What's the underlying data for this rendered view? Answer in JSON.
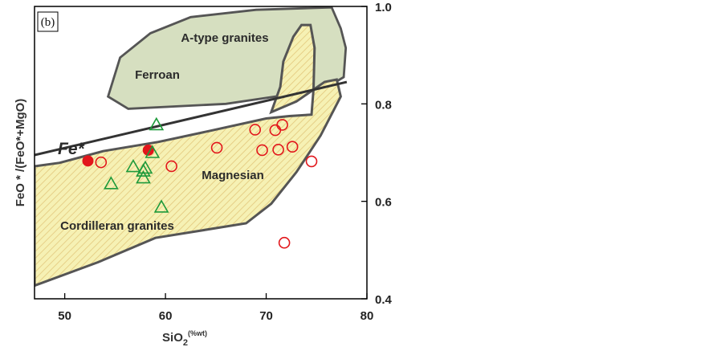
{
  "chart_data": {
    "type": "scatter",
    "panel_label": "(b)",
    "xlabel_main": "SiO",
    "xlabel_sub": "2",
    "xlabel_sup": "(%wt)",
    "ylabel": "FeO * /(FeO*+MgO)",
    "xlim": [
      47,
      80
    ],
    "ylim": [
      0.4,
      1.0
    ],
    "x_ticks": [
      "50",
      "60",
      "70",
      "80"
    ],
    "y_ticks": [
      "0.4",
      "0.6",
      "0.8",
      "1.0"
    ],
    "y_axis_side": "right",
    "grid": false,
    "colors": {
      "ferroan_fill": "#d6dfc0",
      "cordilleran_fill": "#f6f1b4",
      "hatch": "#e2c77c",
      "boundary": "#555555",
      "red": "#e2161b",
      "green": "#1e9a3b"
    },
    "regions": {
      "a_type": "A-type granites",
      "ferroan": "Ferroan",
      "magnesian": "Magnesian",
      "cordilleran": "Cordilleran granites",
      "fe_star": "Fe*"
    },
    "fe_line": [
      [
        47,
        0.695
      ],
      [
        78,
        0.845
      ]
    ],
    "a_type_polygon": [
      [
        54.3,
        0.815
      ],
      [
        55.5,
        0.895
      ],
      [
        58.5,
        0.945
      ],
      [
        62.5,
        0.978
      ],
      [
        69,
        0.993
      ],
      [
        76.5,
        0.998
      ],
      [
        77.4,
        0.955
      ],
      [
        77.9,
        0.915
      ],
      [
        77.7,
        0.855
      ],
      [
        76.5,
        0.84
      ],
      [
        72.5,
        0.82
      ],
      [
        66,
        0.8
      ],
      [
        56.3,
        0.79
      ]
    ],
    "cordilleran_polygon": [
      [
        47,
        0.672
      ],
      [
        49.5,
        0.679
      ],
      [
        53.8,
        0.703
      ],
      [
        59.3,
        0.722
      ],
      [
        64.5,
        0.745
      ],
      [
        70,
        0.77
      ],
      [
        72.3,
        0.775
      ],
      [
        74.5,
        0.778
      ],
      [
        74.7,
        0.83
      ],
      [
        74.8,
        0.915
      ],
      [
        74.4,
        0.962
      ],
      [
        73.5,
        0.962
      ],
      [
        72.7,
        0.938
      ],
      [
        71.7,
        0.887
      ],
      [
        71.4,
        0.835
      ],
      [
        70.5,
        0.783
      ],
      [
        73,
        0.805
      ],
      [
        75.8,
        0.845
      ],
      [
        77,
        0.85
      ],
      [
        77.4,
        0.815
      ],
      [
        75.4,
        0.735
      ],
      [
        73,
        0.66
      ],
      [
        70.5,
        0.595
      ],
      [
        68,
        0.555
      ],
      [
        63.5,
        0.54
      ],
      [
        59,
        0.525
      ],
      [
        53.3,
        0.475
      ],
      [
        47,
        0.427
      ]
    ],
    "series": [
      {
        "marker": "filled-circle",
        "color": "red",
        "points": [
          [
            52.3,
            0.683
          ],
          [
            58.3,
            0.705
          ]
        ]
      },
      {
        "marker": "open-circle",
        "color": "red",
        "points": [
          [
            53.6,
            0.68
          ],
          [
            60.6,
            0.672
          ],
          [
            65.1,
            0.71
          ],
          [
            68.9,
            0.747
          ],
          [
            69.6,
            0.705
          ],
          [
            70.9,
            0.746
          ],
          [
            71.2,
            0.706
          ],
          [
            71.6,
            0.757
          ],
          [
            72.6,
            0.712
          ],
          [
            74.5,
            0.682
          ],
          [
            71.8,
            0.515
          ]
        ]
      },
      {
        "marker": "open-triangle",
        "color": "green",
        "points": [
          [
            54.6,
            0.636
          ],
          [
            56.8,
            0.671
          ],
          [
            57.8,
            0.648
          ],
          [
            57.8,
            0.662
          ],
          [
            58.0,
            0.668
          ],
          [
            58.7,
            0.7
          ],
          [
            59.1,
            0.757
          ],
          [
            59.6,
            0.588
          ]
        ]
      }
    ]
  }
}
